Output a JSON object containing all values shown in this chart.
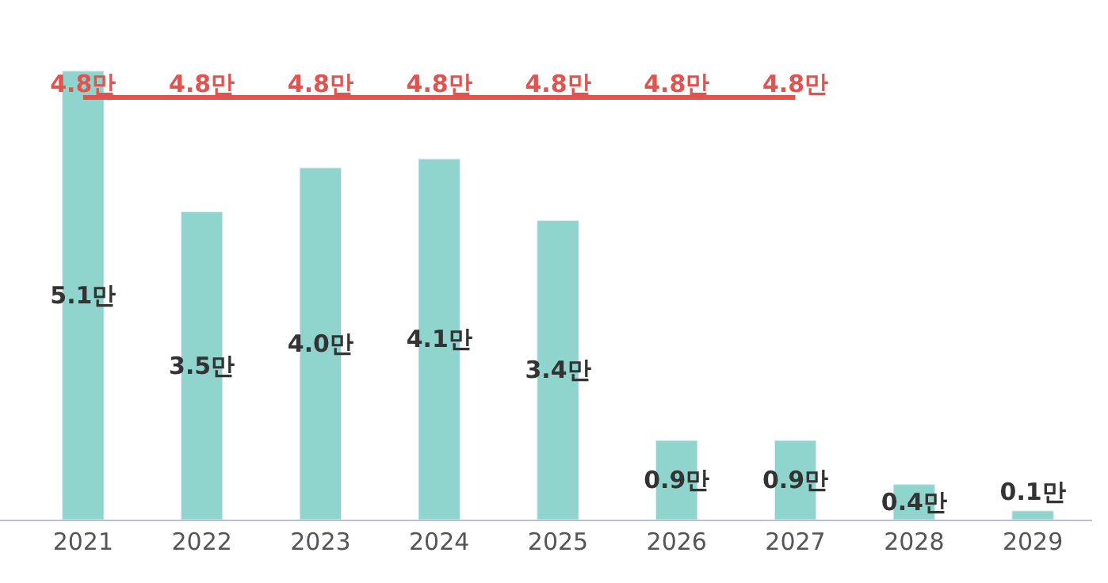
{
  "chart_data": {
    "type": "bar",
    "categories": [
      "2021",
      "2022",
      "2023",
      "2024",
      "2025",
      "2026",
      "2027",
      "2028",
      "2029"
    ],
    "series": [
      {
        "color": "#8fd4cd",
        "values": [
          5.1,
          3.5,
          4.0,
          4.1,
          3.4,
          0.9,
          0.9,
          0.4,
          0.1
        ],
        "value_labels": [
          "5.1만",
          "3.5만",
          "4.0만",
          "4.1만",
          "3.4만",
          "0.9만",
          "0.9만",
          "0.4만",
          "0.1만"
        ]
      },
      {
        "type": "line",
        "color": "#e0534f",
        "values": [
          4.8,
          4.8,
          4.8,
          4.8,
          4.8,
          4.8,
          4.8,
          null,
          null
        ],
        "value_labels": [
          "4.8만",
          "4.8만",
          "4.8만",
          "4.8만",
          "4.8만",
          "4.8만",
          "4.8만",
          null,
          null
        ]
      }
    ],
    "legend": false,
    "tick_labels": "x",
    "marker": "none"
  }
}
